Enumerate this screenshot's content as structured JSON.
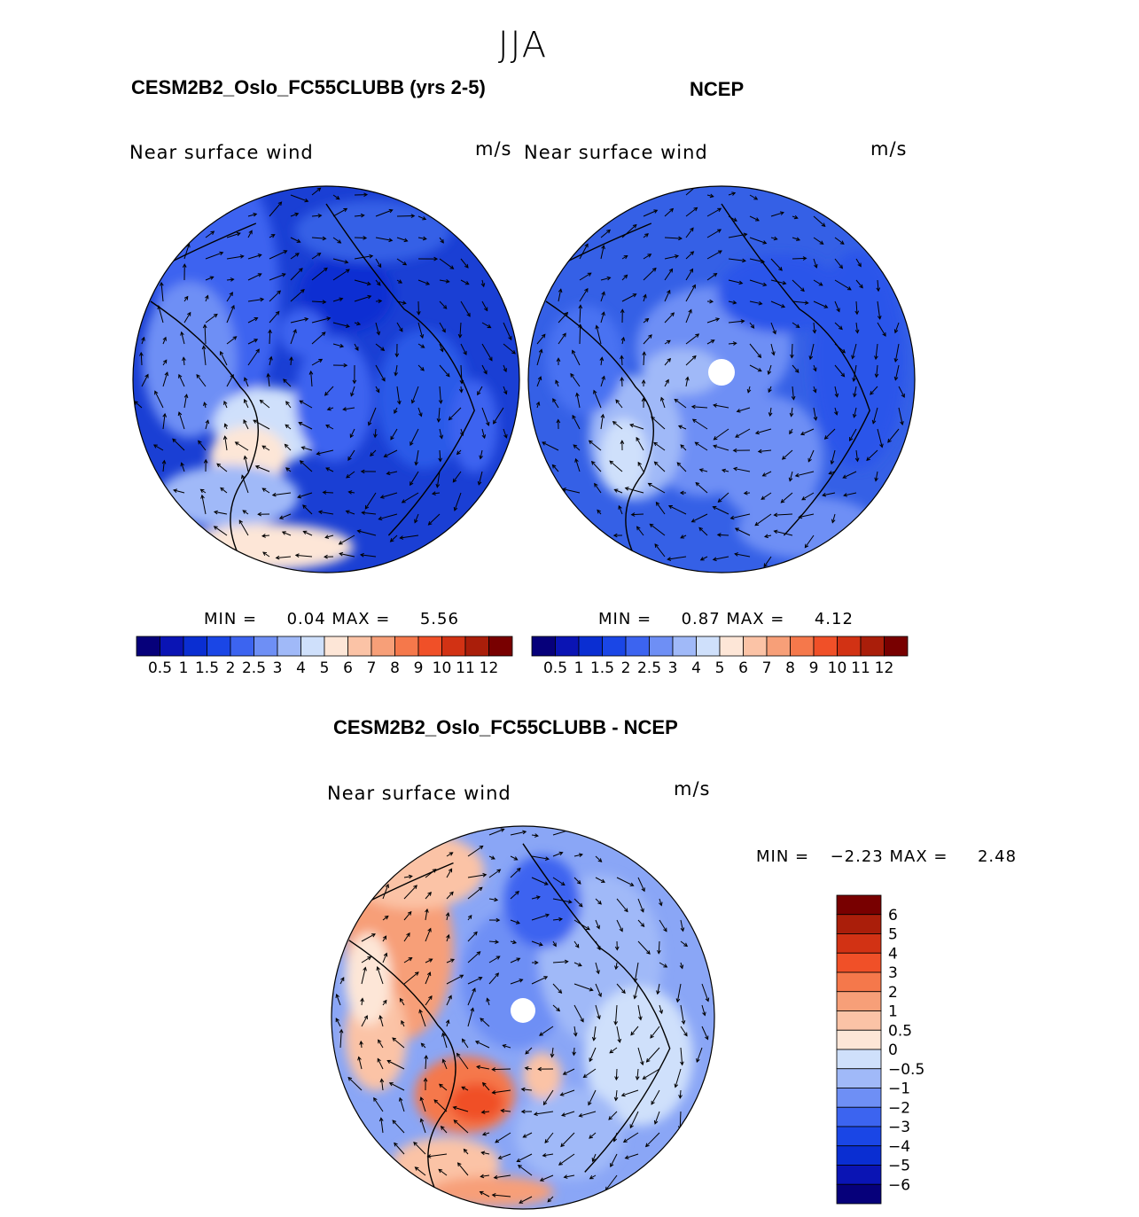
{
  "figure": {
    "season": "JJA",
    "colors": {
      "full_palette": [
        "#06007a",
        "#0a14b4",
        "#0a2ed2",
        "#1a46e6",
        "#3c64f0",
        "#6e8ff5",
        "#a0b9f8",
        "#cfe0fb",
        "#fde6d7",
        "#fbc3a6",
        "#f79f78",
        "#f5784b",
        "#f05028",
        "#d23214",
        "#aa1e0a",
        "#780000"
      ],
      "diff_palette": [
        "#06007a",
        "#0a14b4",
        "#0a2ed2",
        "#1a46e6",
        "#3c64f0",
        "#6e8ff5",
        "#a0b9f8",
        "#cfe0fb",
        "#fde6d7",
        "#fbc3a6",
        "#f79f78",
        "#f5784b",
        "#f05028",
        "#d23214",
        "#aa1e0a",
        "#780000"
      ],
      "land_outline": "#000000"
    }
  },
  "chart_data": [
    {
      "type": "polar-contour-map",
      "title": "CESM2B2_Oslo_FC55CLUBB (yrs 2-5)",
      "field": "Near surface wind",
      "units": "m/s",
      "stats": {
        "min_label": "MIN =",
        "min": "0.04",
        "max_label": "MAX =",
        "max": "5.56"
      },
      "levels": [
        "0.5",
        "1",
        "1.5",
        "2",
        "2.5",
        "3",
        "4",
        "5",
        "6",
        "7",
        "8",
        "9",
        "10",
        "11",
        "12"
      ],
      "dominant_colors": [
        "#1a3fd4",
        "#1e4fe0",
        "#2a5ae8",
        "#3560e6"
      ],
      "patch_colors": [
        "#a0b9f8",
        "#cfe0fb",
        "#fde6d7",
        "#6e8ff5"
      ]
    },
    {
      "type": "polar-contour-map",
      "title": "NCEP",
      "field": "Near surface wind",
      "units": "m/s",
      "stats": {
        "min_label": "MIN =",
        "min": "0.87",
        "max_label": "MAX =",
        "max": "4.12"
      },
      "levels": [
        "0.5",
        "1",
        "1.5",
        "2",
        "2.5",
        "3",
        "4",
        "5",
        "6",
        "7",
        "8",
        "9",
        "10",
        "11",
        "12"
      ],
      "dominant_colors": [
        "#3c64f0",
        "#2a55ea",
        "#4a72f2",
        "#3560e6"
      ],
      "patch_colors": [
        "#6e8ff5",
        "#a0b9f8",
        "#cfe0fb"
      ]
    },
    {
      "type": "polar-contour-map",
      "title": "CESM2B2_Oslo_FC55CLUBB - NCEP",
      "field": "Near surface wind",
      "units": "m/s",
      "stats": {
        "min_label": "MIN =",
        "min": "−2.23",
        "max_label": "MAX =",
        "max": "2.48"
      },
      "levels": [
        "6",
        "5",
        "4",
        "3",
        "2",
        "1",
        "0.5",
        "0",
        "−0.5",
        "−1",
        "−2",
        "−3",
        "−4",
        "−5",
        "−6"
      ],
      "dominant_colors": [
        "#8aa6f6",
        "#a0b9f8",
        "#7896f4",
        "#b4c8f9"
      ],
      "patch_colors": [
        "#f79f78",
        "#fbc3a6",
        "#fde6d7",
        "#f5784b",
        "#cfe0fb"
      ]
    }
  ]
}
